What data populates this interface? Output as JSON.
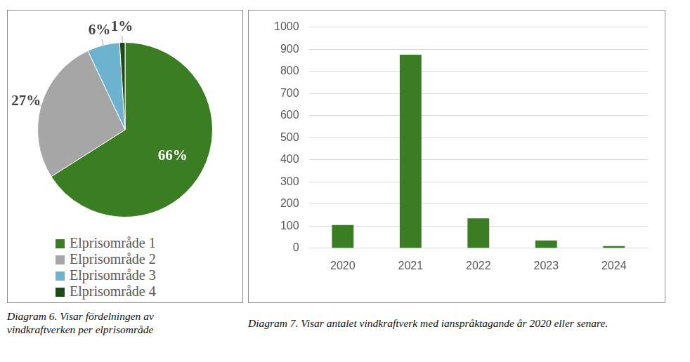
{
  "chart_data": [
    {
      "type": "pie",
      "title": "Diagram 6. Visar fördelningen av vindkraftverken per elprisområde",
      "categories": [
        "Elprisområde 1",
        "Elprisområde 2",
        "Elprisområde 3",
        "Elprisområde 4"
      ],
      "values": [
        66,
        27,
        6,
        1
      ],
      "value_labels": [
        "66%",
        "27%",
        "6%",
        "1%"
      ],
      "colors": [
        "#3a7d22",
        "#a6a6a6",
        "#6db3d0",
        "#1c4a12"
      ],
      "data_labels": true,
      "legend": "bottom"
    },
    {
      "type": "bar",
      "title": "Diagram 7. Visar antalet vindkraftverk med ianspråktagande år 2020 eller senare.",
      "categories": [
        "2020",
        "2021",
        "2022",
        "2023",
        "2024"
      ],
      "values": [
        105,
        875,
        135,
        35,
        10
      ],
      "color": "#3a7d22",
      "ylim": [
        0,
        1000
      ],
      "yticks": [
        0,
        100,
        200,
        300,
        400,
        500,
        600,
        700,
        800,
        900,
        1000
      ],
      "grid": true
    }
  ]
}
